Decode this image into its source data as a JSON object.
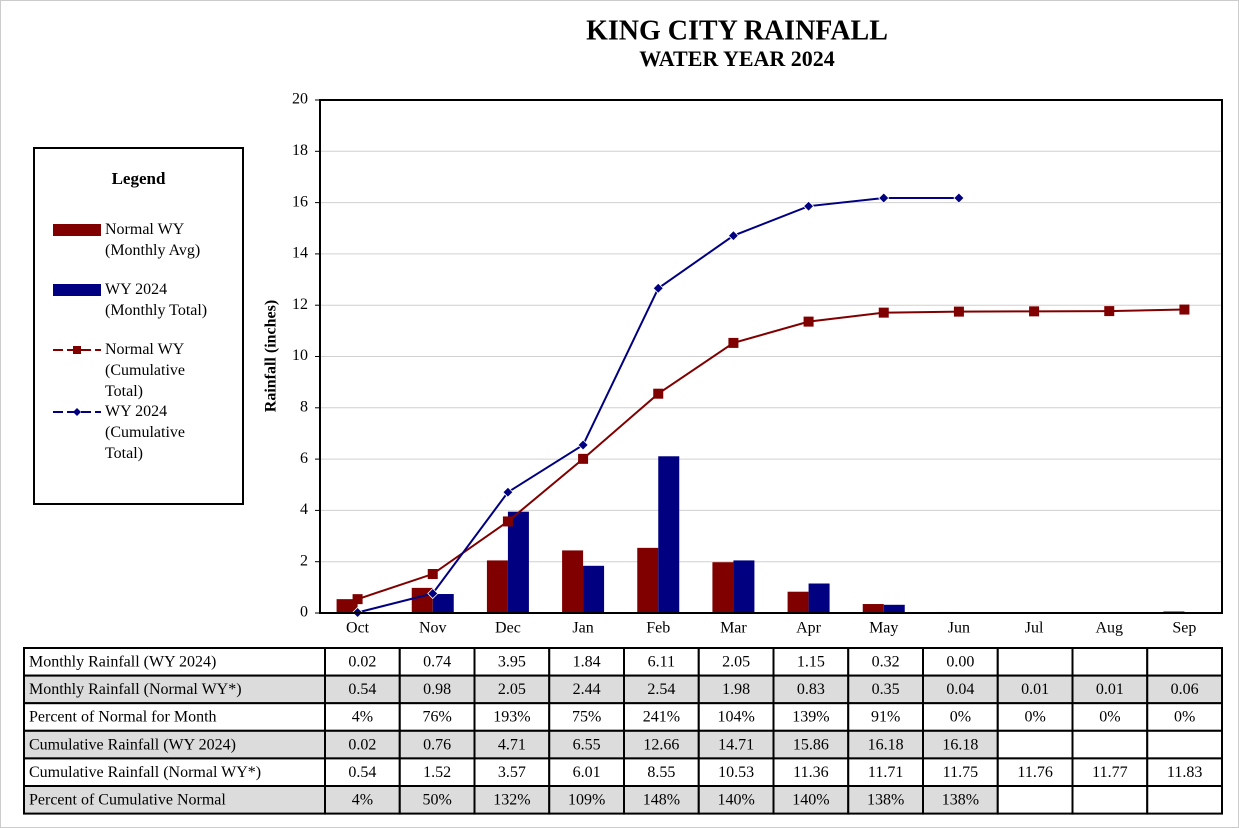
{
  "chart_data": {
    "type": "bar_line",
    "title": "KING CITY RAINFALL",
    "subtitle": "WATER YEAR 2024",
    "y_label": "Rainfall (inches)",
    "legend_title": "Legend",
    "categories": [
      "Oct",
      "Nov",
      "Dec",
      "Jan",
      "Feb",
      "Mar",
      "Apr",
      "May",
      "Jun",
      "Jul",
      "Aug",
      "Sep"
    ],
    "ylim": [
      0,
      20
    ],
    "yticks": [
      0,
      2,
      4,
      6,
      8,
      10,
      12,
      14,
      16,
      18,
      20
    ],
    "grid": true,
    "series": [
      {
        "name": "Normal WY (Monthly Avg)",
        "kind": "bar",
        "color": "#800000",
        "values": [
          0.54,
          0.98,
          2.05,
          2.44,
          2.54,
          1.98,
          0.83,
          0.35,
          0.04,
          0.01,
          0.01,
          0.06
        ]
      },
      {
        "name": "WY 2024 (Monthly Total)",
        "kind": "bar",
        "color": "#000080",
        "values": [
          0.02,
          0.74,
          3.95,
          1.84,
          6.11,
          2.05,
          1.15,
          0.32,
          0.0,
          null,
          null,
          null
        ]
      },
      {
        "name": "Normal WY (Cumulative Total)",
        "kind": "line",
        "marker": "square",
        "color": "#800000",
        "values": [
          0.54,
          1.52,
          3.57,
          6.01,
          8.55,
          10.53,
          11.36,
          11.71,
          11.75,
          11.76,
          11.77,
          11.83
        ]
      },
      {
        "name": "WY 2024 (Cumulative Total)",
        "kind": "line",
        "marker": "diamond",
        "color": "#000080",
        "values": [
          0.02,
          0.76,
          4.71,
          6.55,
          12.66,
          14.71,
          15.86,
          16.18,
          16.18,
          null,
          null,
          null
        ]
      }
    ],
    "table": {
      "rows": [
        {
          "label": "Monthly Rainfall (WY 2024)",
          "shaded": false,
          "cells": [
            "0.02",
            "0.74",
            "3.95",
            "1.84",
            "6.11",
            "2.05",
            "1.15",
            "0.32",
            "0.00",
            null,
            null,
            null
          ]
        },
        {
          "label": "Monthly Rainfall (Normal WY*)",
          "shaded": true,
          "cells": [
            "0.54",
            "0.98",
            "2.05",
            "2.44",
            "2.54",
            "1.98",
            "0.83",
            "0.35",
            "0.04",
            "0.01",
            "0.01",
            "0.06"
          ]
        },
        {
          "label": "Percent of Normal for Month",
          "shaded": false,
          "cells": [
            "4%",
            "76%",
            "193%",
            "75%",
            "241%",
            "104%",
            "139%",
            "91%",
            "0%",
            "0%",
            "0%",
            "0%"
          ]
        },
        {
          "label": "Cumulative Rainfall (WY 2024)",
          "shaded": true,
          "cells": [
            "0.02",
            "0.76",
            "4.71",
            "6.55",
            "12.66",
            "14.71",
            "15.86",
            "16.18",
            "16.18",
            null,
            null,
            null
          ]
        },
        {
          "label": "Cumulative Rainfall (Normal WY*)",
          "shaded": false,
          "cells": [
            "0.54",
            "1.52",
            "3.57",
            "6.01",
            "8.55",
            "10.53",
            "11.36",
            "11.71",
            "11.75",
            "11.76",
            "11.77",
            "11.83"
          ]
        },
        {
          "label": "Percent of Cumulative Normal",
          "shaded": true,
          "cells": [
            "4%",
            "50%",
            "132%",
            "109%",
            "148%",
            "140%",
            "140%",
            "138%",
            "138%",
            null,
            null,
            null
          ]
        }
      ]
    }
  }
}
